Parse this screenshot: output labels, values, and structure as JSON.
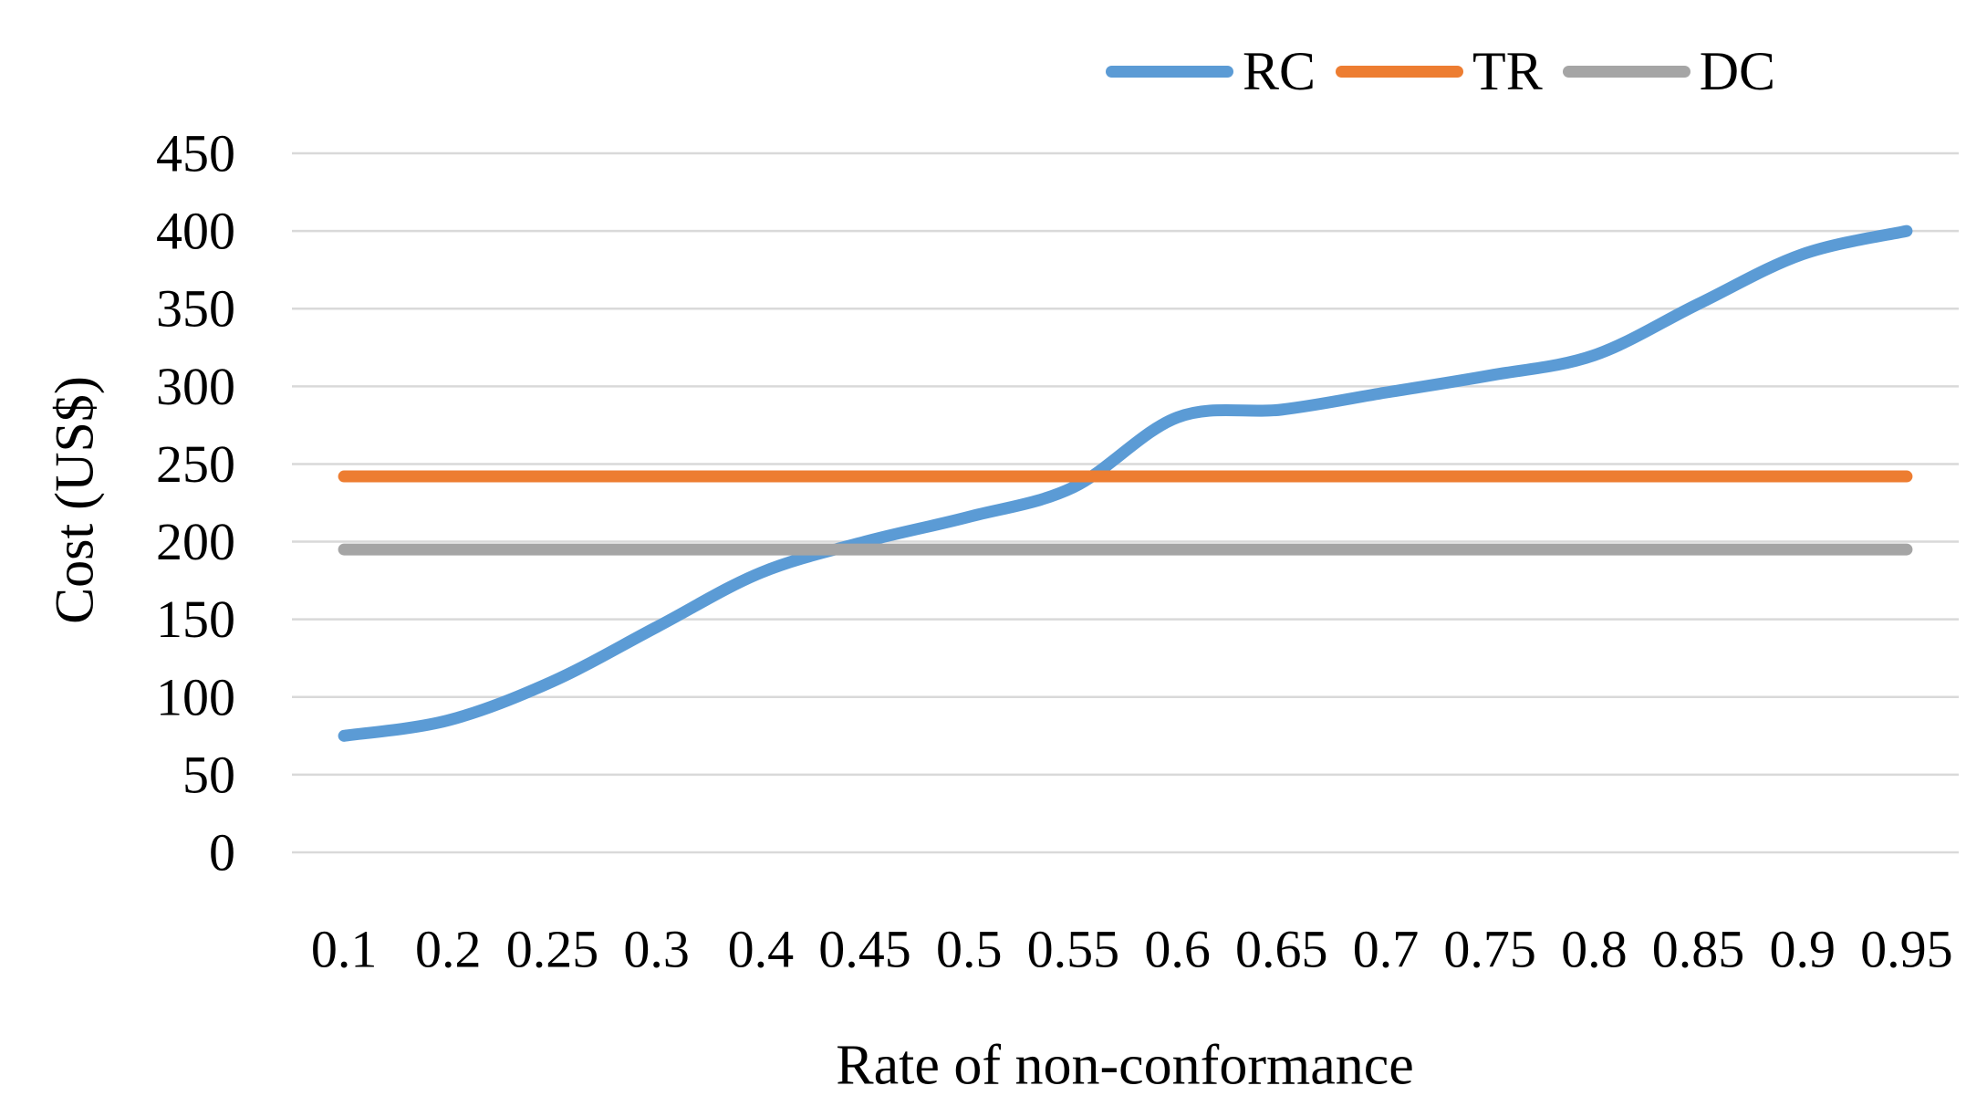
{
  "chart_data": {
    "type": "line",
    "title": "",
    "xlabel": "Rate of non-conformance",
    "ylabel": "Cost (US$)",
    "categories": [
      "0.1",
      "0.2",
      "0.25",
      "0.3",
      "0.4",
      "0.45",
      "0.5",
      "0.55",
      "0.6",
      "0.65",
      "0.7",
      "0.75",
      "0.8",
      "0.85",
      "0.9",
      "0.95"
    ],
    "series": [
      {
        "name": "RC",
        "color": "#5B9BD5",
        "smooth": true,
        "values": [
          75,
          85,
          110,
          145,
          180,
          200,
          216,
          235,
          280,
          285,
          296,
          307,
          320,
          353,
          385,
          400
        ]
      },
      {
        "name": "TR",
        "color": "#ED7D31",
        "smooth": false,
        "values": [
          242,
          242,
          242,
          242,
          242,
          242,
          242,
          242,
          242,
          242,
          242,
          242,
          242,
          242,
          242,
          242
        ]
      },
      {
        "name": "DC",
        "color": "#A5A5A5",
        "smooth": false,
        "values": [
          195,
          195,
          195,
          195,
          195,
          195,
          195,
          195,
          195,
          195,
          195,
          195,
          195,
          195,
          195,
          195
        ]
      }
    ],
    "y_ticks": [
      0,
      50,
      100,
      150,
      200,
      250,
      300,
      350,
      400,
      450
    ],
    "ylim": [
      0,
      450
    ],
    "grid": "horizontal-only",
    "gridline_color": "#D9D9D9",
    "legend_position": "top",
    "line_width": 13
  }
}
